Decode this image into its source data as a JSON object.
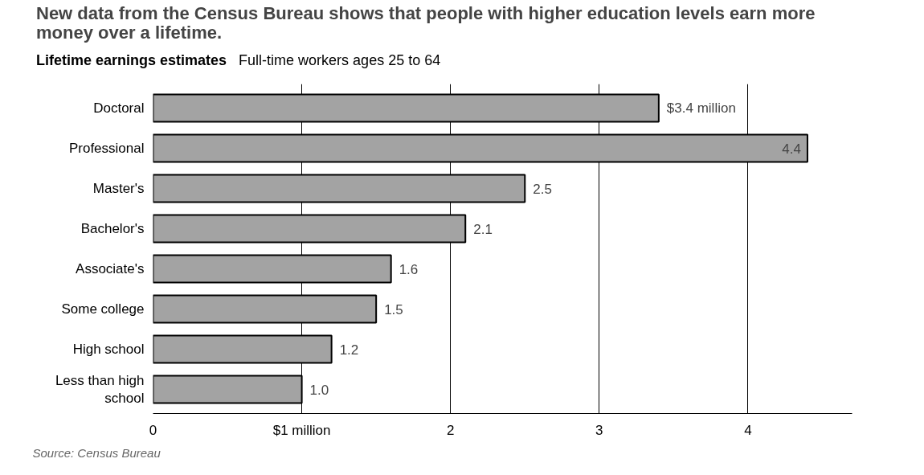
{
  "chart_data": {
    "type": "bar",
    "orientation": "horizontal",
    "title": "New data from the Census Bureau shows that people with higher education levels earn more money over a lifetime.",
    "subtitle": "Lifetime earnings estimates",
    "annotations": [
      "Full-time workers ages 25 to 64",
      "Source:  Census Bureau"
    ],
    "categories": [
      "Doctoral",
      "Professional",
      "Master's",
      "Bachelor's",
      "Associate's",
      "Some college",
      "High school",
      "Less than high school"
    ],
    "values": [
      3.4,
      4.4,
      2.5,
      2.1,
      1.6,
      1.5,
      1.2,
      1.0
    ],
    "value_labels": [
      "$3.4 million",
      "4.4",
      "2.5",
      "2.1",
      "1.6",
      "1.5",
      "1.2",
      "1.0"
    ],
    "color": "#a3a3a3",
    "xlim": [
      0,
      4.7
    ],
    "xticks": [
      0,
      {
        "value": 1,
        "label": "$1 million"
      },
      2,
      3,
      4
    ],
    "grid": "x"
  }
}
